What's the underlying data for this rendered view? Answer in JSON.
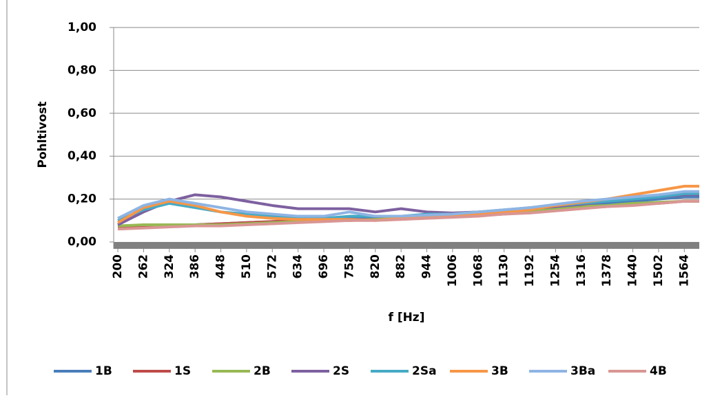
{
  "chart_data": {
    "type": "line",
    "y_label": "Pohltivost",
    "x_label": "f [Hz]",
    "x": [
      200,
      262,
      324,
      386,
      448,
      510,
      572,
      634,
      696,
      758,
      820,
      882,
      944,
      1006,
      1068,
      1130,
      1192,
      1254,
      1316,
      1378,
      1440,
      1502,
      1564,
      1600
    ],
    "xlim": [
      190,
      1600
    ],
    "xticks": [
      200,
      262,
      324,
      386,
      448,
      510,
      572,
      634,
      696,
      758,
      820,
      882,
      944,
      1006,
      1068,
      1130,
      1192,
      1254,
      1316,
      1378,
      1440,
      1502,
      1564
    ],
    "ylim": [
      0,
      1
    ],
    "yticks": [
      {
        "value": 0,
        "label": "0,00"
      },
      {
        "value": 0.2,
        "label": "0,20"
      },
      {
        "value": 0.4,
        "label": "0,40"
      },
      {
        "value": 0.6,
        "label": "0,60"
      },
      {
        "value": 0.8,
        "label": "0,80"
      },
      {
        "value": 1,
        "label": "1,00"
      }
    ],
    "grid": true,
    "legend": "bottom",
    "series": [
      {
        "name": "1B",
        "color": "#4a7ebb",
        "values": [
          0.07,
          0.075,
          0.08,
          0.08,
          0.085,
          0.09,
          0.095,
          0.1,
          0.105,
          0.11,
          0.115,
          0.12,
          0.12,
          0.125,
          0.13,
          0.14,
          0.15,
          0.16,
          0.17,
          0.18,
          0.19,
          0.2,
          0.21,
          0.21
        ]
      },
      {
        "name": "1S",
        "color": "#be4b48",
        "values": [
          0.07,
          0.075,
          0.08,
          0.08,
          0.085,
          0.09,
          0.095,
          0.1,
          0.1,
          0.1,
          0.105,
          0.11,
          0.115,
          0.12,
          0.125,
          0.13,
          0.14,
          0.15,
          0.16,
          0.165,
          0.175,
          0.18,
          0.19,
          0.19
        ]
      },
      {
        "name": "2B",
        "color": "#98b954",
        "values": [
          0.075,
          0.08,
          0.08,
          0.08,
          0.08,
          0.085,
          0.09,
          0.095,
          0.1,
          0.1,
          0.105,
          0.11,
          0.115,
          0.12,
          0.125,
          0.135,
          0.145,
          0.155,
          0.165,
          0.17,
          0.18,
          0.185,
          0.19,
          0.19
        ]
      },
      {
        "name": "2S",
        "color": "#7d60a0",
        "values": [
          0.08,
          0.14,
          0.19,
          0.22,
          0.21,
          0.19,
          0.17,
          0.155,
          0.155,
          0.155,
          0.14,
          0.155,
          0.14,
          0.135,
          0.14,
          0.145,
          0.155,
          0.165,
          0.175,
          0.19,
          0.2,
          0.21,
          0.22,
          0.22
        ]
      },
      {
        "name": "2Sa",
        "color": "#46aac5",
        "values": [
          0.1,
          0.15,
          0.18,
          0.16,
          0.14,
          0.13,
          0.12,
          0.11,
          0.11,
          0.12,
          0.12,
          0.12,
          0.13,
          0.13,
          0.14,
          0.15,
          0.16,
          0.17,
          0.18,
          0.19,
          0.2,
          0.21,
          0.225,
          0.225
        ]
      },
      {
        "name": "3B",
        "color": "#f79646",
        "values": [
          0.09,
          0.16,
          0.19,
          0.17,
          0.14,
          0.12,
          0.11,
          0.105,
          0.105,
          0.105,
          0.1,
          0.11,
          0.115,
          0.12,
          0.13,
          0.14,
          0.15,
          0.17,
          0.185,
          0.2,
          0.22,
          0.24,
          0.26,
          0.26
        ]
      },
      {
        "name": "3Ba",
        "color": "#8eb4e3",
        "values": [
          0.11,
          0.17,
          0.2,
          0.18,
          0.16,
          0.14,
          0.13,
          0.12,
          0.12,
          0.14,
          0.12,
          0.12,
          0.125,
          0.13,
          0.14,
          0.15,
          0.16,
          0.175,
          0.19,
          0.2,
          0.21,
          0.22,
          0.235,
          0.235
        ]
      },
      {
        "name": "4B",
        "color": "#d99694",
        "values": [
          0.06,
          0.065,
          0.07,
          0.075,
          0.075,
          0.08,
          0.085,
          0.09,
          0.095,
          0.1,
          0.1,
          0.105,
          0.11,
          0.115,
          0.12,
          0.13,
          0.135,
          0.145,
          0.155,
          0.165,
          0.17,
          0.18,
          0.19,
          0.19
        ]
      }
    ]
  }
}
